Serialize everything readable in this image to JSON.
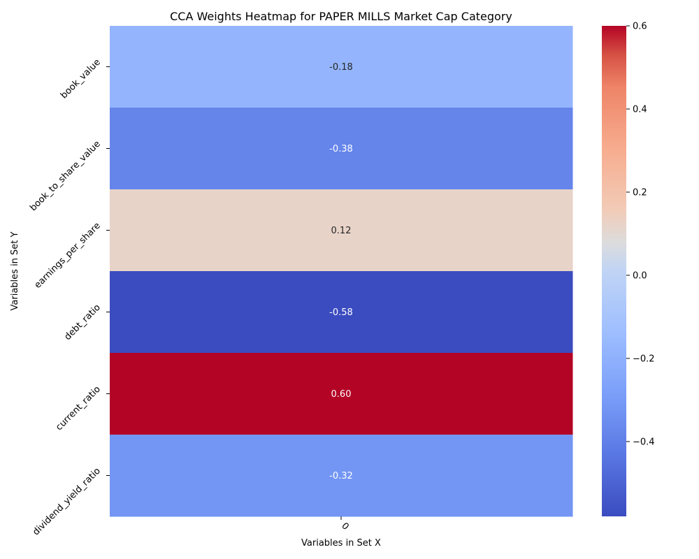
{
  "chart_data": {
    "type": "heatmap",
    "title": "CCA Weights Heatmap for PAPER MILLS Market Cap Category",
    "xlabel": "Variables in Set X",
    "ylabel": "Variables in Set Y",
    "x_categories": [
      "0"
    ],
    "y_categories": [
      "book_value",
      "book_to_share_value",
      "earnings_per_share",
      "debt_ratio",
      "current_ratio",
      "dividend_yield_ratio"
    ],
    "values": [
      [
        -0.18
      ],
      [
        -0.38
      ],
      [
        0.12
      ],
      [
        -0.58
      ],
      [
        0.6
      ],
      [
        -0.32
      ]
    ],
    "value_labels": [
      [
        "-0.18"
      ],
      [
        "-0.38"
      ],
      [
        "0.12"
      ],
      [
        "-0.58"
      ],
      [
        "0.60"
      ],
      [
        "-0.32"
      ]
    ],
    "colormap": "coolwarm",
    "vmin": -0.58,
    "vmax": 0.6,
    "colorbar_ticks": [
      0.6,
      0.4,
      0.2,
      0.0,
      -0.2,
      -0.4
    ],
    "colorbar_tick_labels": [
      "0.6",
      "0.4",
      "0.2",
      "0.0",
      "−0.2",
      "−0.4"
    ]
  }
}
